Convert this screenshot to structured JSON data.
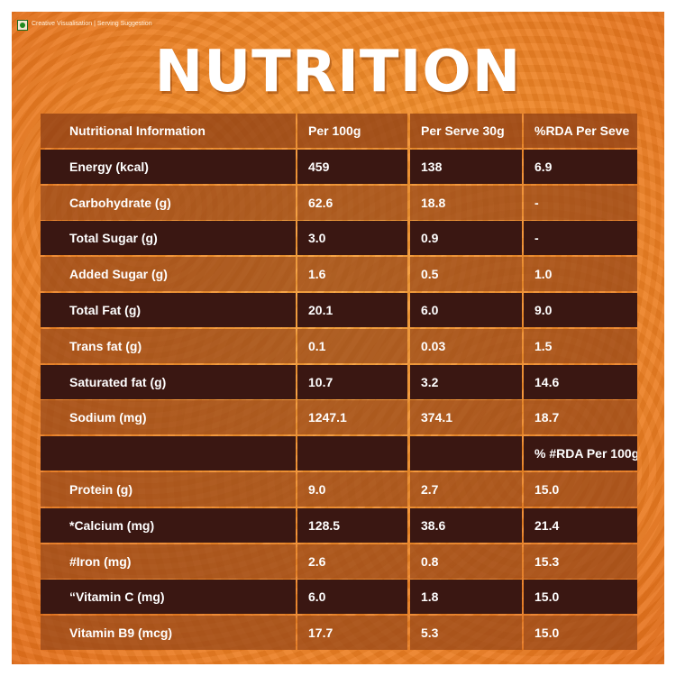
{
  "badge": {
    "icon": "veg-mark-icon",
    "text": "Creative Visualisation | Serving Suggestion"
  },
  "title": "NUTRITION",
  "table": {
    "headers": [
      "Nutritional Information",
      "Per 100g",
      "Per Serve 30g",
      "%RDA Per Seve"
    ],
    "rows": [
      [
        "Energy (kcal)",
        "459",
        "138",
        "6.9"
      ],
      [
        "Carbohydrate (g)",
        "62.6",
        "18.8",
        "-"
      ],
      [
        "Total Sugar (g)",
        "3.0",
        "0.9",
        "-"
      ],
      [
        "Added Sugar (g)",
        "1.6",
        "0.5",
        "1.0"
      ],
      [
        "Total Fat (g)",
        "20.1",
        "6.0",
        "9.0"
      ],
      [
        "Trans fat (g)",
        "0.1",
        "0.03",
        "1.5"
      ],
      [
        "Saturated fat (g)",
        "10.7",
        "3.2",
        "14.6"
      ],
      [
        "Sodium (mg)",
        "1247.1",
        "374.1",
        "18.7"
      ],
      [
        "",
        "",
        "",
        "% #RDA Per 100g"
      ],
      [
        "Protein (g)",
        "9.0",
        "2.7",
        "15.0"
      ],
      [
        "*Calcium (mg)",
        "128.5",
        "38.6",
        "21.4"
      ],
      [
        "#Iron (mg)",
        "2.6",
        "0.8",
        "15.3"
      ],
      [
        "“Vitamin C (mg)",
        "6.0",
        "1.8",
        "15.0"
      ],
      [
        "Vitamin B9 (mcg)",
        "17.7",
        "5.3",
        "15.0"
      ]
    ]
  },
  "colors": {
    "background": "#f08a28",
    "dark_row": "#3a1712",
    "light_row": "#964619",
    "text": "#ffffff"
  }
}
